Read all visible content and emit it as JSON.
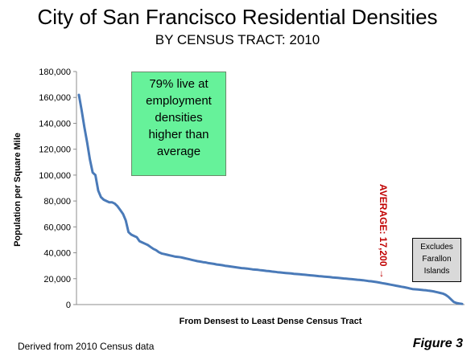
{
  "header": {
    "title": "City of San Francisco Residential Densities",
    "subtitle": "BY CENSUS TRACT:  2010"
  },
  "annotations": {
    "note_lines": [
      "79% live at",
      "employment",
      "densities",
      "higher than",
      "average"
    ],
    "average_label": "AVERAGE: 17,200",
    "average_arrow": "→",
    "excludes_lines": [
      "Excludes",
      "Farallon",
      "Islands"
    ]
  },
  "footer": {
    "source": "Derived from 2010 Census data",
    "figure": "Figure 3"
  },
  "colors": {
    "line": "#4a7ab8",
    "note_box": "#66f29a",
    "average_text": "#c00000",
    "excludes_box": "#d9d9d9"
  },
  "chart_data": {
    "type": "line",
    "xlabel": "From Densest to Least Dense Census Tract",
    "ylabel": "Population per Square Mile",
    "ylim": [
      0,
      180000
    ],
    "yticks": [
      "0",
      "20,000",
      "40,000",
      "60,000",
      "80,000",
      "100,000",
      "120,000",
      "140,000",
      "160,000",
      "180,000"
    ],
    "grid": false,
    "average": 17200,
    "series": [
      {
        "values": [
          162000,
          150000,
          137000,
          125000,
          112000,
          102000,
          100000,
          88000,
          83000,
          81000,
          80000,
          79000,
          79000,
          78000,
          76000,
          73000,
          70000,
          65000,
          56000,
          54000,
          53000,
          52000,
          49000,
          48000,
          47000,
          46000,
          44500,
          43000,
          42000,
          40500,
          39500,
          39000,
          38500,
          38000,
          37500,
          37000,
          36800,
          36500,
          36000,
          35500,
          35000,
          34500,
          34000,
          33500,
          33200,
          32800,
          32500,
          32000,
          31700,
          31400,
          31000,
          30700,
          30400,
          30000,
          29700,
          29400,
          29100,
          28800,
          28500,
          28200,
          28000,
          27800,
          27500,
          27200,
          27000,
          26800,
          26500,
          26300,
          26000,
          25800,
          25500,
          25300,
          25000,
          24800,
          24600,
          24400,
          24200,
          24000,
          23800,
          23600,
          23400,
          23200,
          23000,
          22800,
          22600,
          22400,
          22200,
          22000,
          21800,
          21600,
          21400,
          21200,
          21000,
          20800,
          20600,
          20400,
          20200,
          20000,
          19800,
          19600,
          19400,
          19200,
          19000,
          18800,
          18500,
          18200,
          18000,
          17700,
          17400,
          17000,
          16600,
          16200,
          15800,
          15400,
          15000,
          14600,
          14200,
          13800,
          13400,
          13000,
          12500,
          12000,
          11800,
          11600,
          11400,
          11200,
          11000,
          10700,
          10400,
          10000,
          9500,
          9000,
          8500,
          7500,
          6000,
          4000,
          2000,
          1200,
          800,
          500
        ]
      }
    ]
  }
}
